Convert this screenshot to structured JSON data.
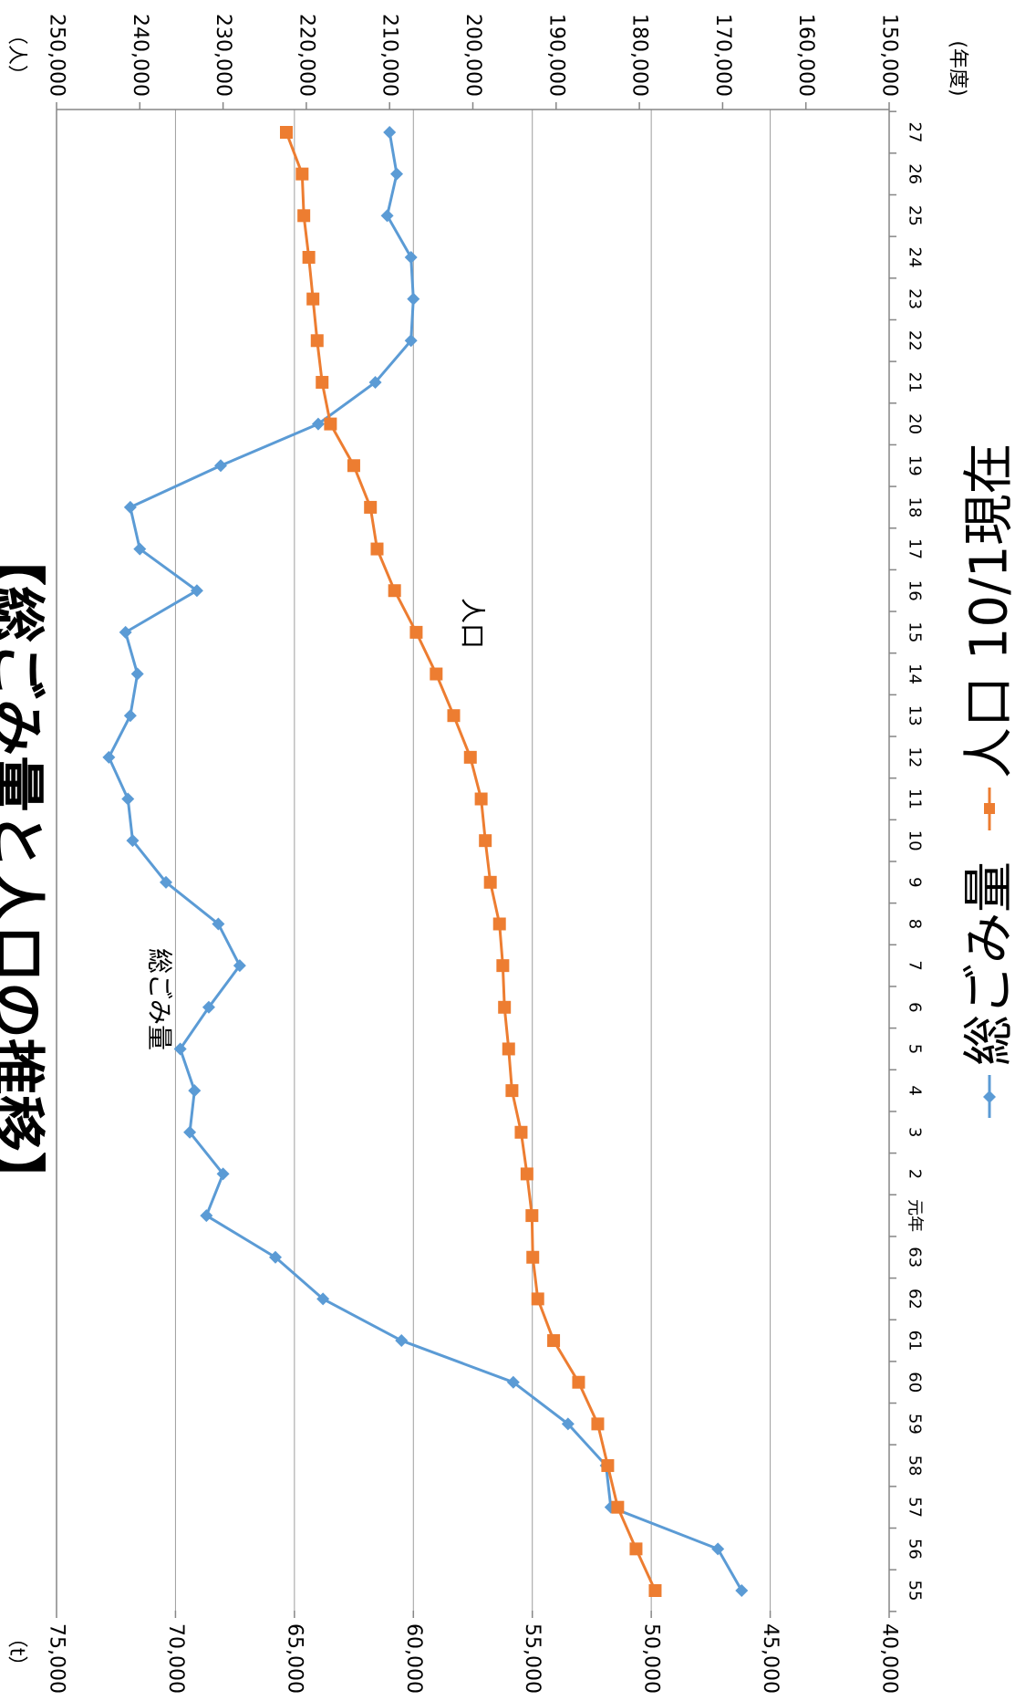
{
  "chart_data": {
    "type": "line",
    "orientation": "rotated-90-clockwise",
    "title": "【総ごみ量と人口の推移】",
    "x": [
      "55",
      "56",
      "57",
      "58",
      "59",
      "60",
      "61",
      "62",
      "63",
      "元年",
      "2",
      "3",
      "4",
      "5",
      "6",
      "7",
      "8",
      "9",
      "10",
      "11",
      "12",
      "13",
      "14",
      "15",
      "16",
      "17",
      "18",
      "19",
      "20",
      "21",
      "22",
      "23",
      "24",
      "25",
      "26",
      "27"
    ],
    "xlabel": "(年度)",
    "y_left": {
      "unit": "（t）",
      "min": 40000,
      "max": 75000,
      "ticks": [
        "40,000",
        "45,000",
        "50,000",
        "55,000",
        "60,000",
        "65,000",
        "70,000",
        "75,000"
      ]
    },
    "y_right": {
      "unit": "（人）",
      "min": 150000,
      "max": 250000,
      "ticks": [
        "150,000",
        "160,000",
        "170,000",
        "180,000",
        "190,000",
        "200,000",
        "210,000",
        "220,000",
        "230,000",
        "240,000",
        "250,000"
      ]
    },
    "gridlines": [
      45000,
      50000,
      55000,
      60000,
      65000,
      70000
    ],
    "series": [
      {
        "name": "総ごみ量",
        "axis": "left",
        "color": "#5b9bd5",
        "marker": "diamond",
        "annotation": "総ごみ量",
        "values": [
          46200,
          47200,
          51700,
          51900,
          53500,
          55800,
          60500,
          63800,
          65800,
          68700,
          68000,
          69400,
          69200,
          69800,
          68600,
          67300,
          68200,
          70400,
          71800,
          72000,
          72800,
          71900,
          71600,
          72100,
          69100,
          71500,
          71900,
          68100,
          64000,
          61600,
          60100,
          60000,
          60100,
          61100,
          60700,
          61000
        ]
      },
      {
        "name": "人口 10/1現在",
        "axis": "right",
        "color": "#ed7d31",
        "marker": "square",
        "annotation": "人口",
        "values": [
          178100,
          180400,
          182600,
          183800,
          185000,
          187300,
          190300,
          192200,
          192800,
          192900,
          193500,
          194200,
          195300,
          195700,
          196200,
          196400,
          196800,
          197900,
          198500,
          199000,
          200300,
          202300,
          204400,
          206800,
          209400,
          211500,
          212300,
          214300,
          217100,
          218100,
          218700,
          219200,
          219700,
          220300,
          220500,
          222400
        ]
      }
    ]
  }
}
